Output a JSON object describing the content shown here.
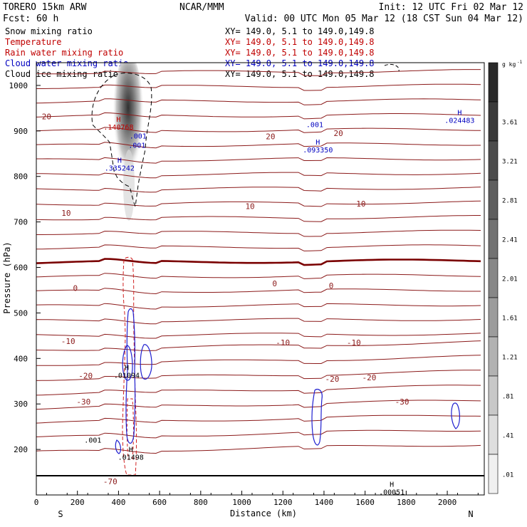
{
  "header": {
    "model": "TORERO  15km ARW",
    "center": "NCAR/MMM",
    "init": "Init: 12 UTC Fri 02 Mar 12",
    "fcst": "Fcst:    60 h",
    "valid": "Valid: 00 UTC Mon 05 Mar 12 (18 CST Sun 04 Mar 12)"
  },
  "legend": [
    {
      "label": "Snow mixing ratio",
      "xy": "XY= 149.0,  5.1 to 149.0,149.8",
      "color": "#000000"
    },
    {
      "label": "Temperature",
      "xy": "XY= 149.0,  5.1 to 149.0,149.8",
      "color": "#c00000"
    },
    {
      "label": "Rain water mixing ratio",
      "xy": "XY= 149.0,  5.1 to 149.0,149.8",
      "color": "#c00000"
    },
    {
      "label": "Cloud water mixing ratio",
      "xy": "XY= 149.0,  5.1 to 149.0,149.8",
      "color": "#0000c0"
    },
    {
      "label": "Cloud ice mixing ratio",
      "xy": "XY= 149.0,  5.1 to 149.0,149.8",
      "color": "#000000"
    }
  ],
  "axis_labels": {
    "y": "Pressure (hPa)",
    "x": "Distance (km)",
    "south": "S",
    "north": "N"
  },
  "colorbar": {
    "unit": "g kg",
    "unit_exp": "-1",
    "ticks": [
      "3.61",
      "3.21",
      "2.81",
      "2.41",
      "2.01",
      "1.61",
      "1.21",
      ".81",
      ".41",
      ".01"
    ],
    "fill_colors": [
      "#3a3a3a",
      "#4c4c4c",
      "#5e5e5e",
      "#727272",
      "#878787",
      "#9c9c9c",
      "#b2b2b2",
      "#c8c8c8",
      "#dedede",
      "#f0f0f0"
    ]
  },
  "chart_data": {
    "type": "contour",
    "xlim": [
      0,
      2180
    ],
    "ylim": [
      1050,
      100
    ],
    "x_ticks": [
      0,
      200,
      400,
      600,
      800,
      1000,
      1200,
      1400,
      1600,
      1800,
      2000
    ],
    "y_ticks": [
      200,
      300,
      400,
      500,
      600,
      700,
      800,
      900,
      1000
    ],
    "temperature_labels": [
      {
        "text": "-70",
        "x": 360,
        "p": 130
      },
      {
        "text": "-30",
        "x": 230,
        "p": 305
      },
      {
        "text": "-30",
        "x": 1780,
        "p": 305
      },
      {
        "text": "-20",
        "x": 240,
        "p": 362
      },
      {
        "text": "-20",
        "x": 1440,
        "p": 355
      },
      {
        "text": "-20",
        "x": 1620,
        "p": 358
      },
      {
        "text": "-10",
        "x": 155,
        "p": 438
      },
      {
        "text": "-10",
        "x": 1200,
        "p": 435
      },
      {
        "text": "-10",
        "x": 1545,
        "p": 435
      },
      {
        "text": "0",
        "x": 190,
        "p": 555
      },
      {
        "text": "0",
        "x": 1160,
        "p": 565
      },
      {
        "text": "0",
        "x": 1435,
        "p": 560
      },
      {
        "text": "10",
        "x": 145,
        "p": 720
      },
      {
        "text": "10",
        "x": 1040,
        "p": 735
      },
      {
        "text": "10",
        "x": 1580,
        "p": 740
      },
      {
        "text": "20",
        "x": 50,
        "p": 932
      },
      {
        "text": "20",
        "x": 1140,
        "p": 888
      },
      {
        "text": "20",
        "x": 1470,
        "p": 895
      }
    ],
    "maxima": [
      {
        "mark": "H",
        "value": ".01498",
        "x": 460,
        "p": 195,
        "color": "#000000"
      },
      {
        "mark": "H",
        "value": ".01094",
        "x": 440,
        "p": 375,
        "color": "#000000"
      },
      {
        "mark": "H",
        "value": ".00051",
        "x": 1730,
        "p": 118,
        "color": "#000000"
      },
      {
        "mark": "H",
        "value": ".335242",
        "x": 405,
        "p": 830,
        "color": "#0000c0"
      },
      {
        "mark": "H",
        "value": ".093350",
        "x": 1370,
        "p": 870,
        "color": "#0000c0"
      },
      {
        "mark": "H",
        "value": ".024483",
        "x": 2060,
        "p": 935,
        "color": "#0000c0"
      },
      {
        "mark": "H",
        "value": ".140768",
        "x": 400,
        "p": 920,
        "color": "#c00000"
      }
    ],
    "contour_value_labels": [
      {
        "text": ".001",
        "x": 275,
        "p": 215,
        "color": "#000000"
      },
      {
        "text": ".001",
        "x": 490,
        "p": 863,
        "color": "#0000c0"
      },
      {
        "text": ".001",
        "x": 495,
        "p": 883,
        "color": "#0000c0"
      },
      {
        "text": ".001",
        "x": 1355,
        "p": 908,
        "color": "#0000c0"
      }
    ]
  }
}
